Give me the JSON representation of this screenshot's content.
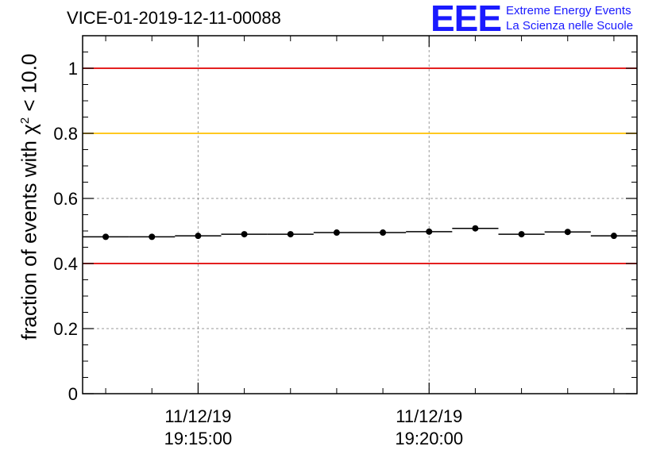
{
  "header": {
    "title": "VICE-01-2019-12-11-00088",
    "logo_mark": "EEE",
    "logo_line1": "Extreme Energy Events",
    "logo_line2": "La Scienza nelle Scuole"
  },
  "chart_data": {
    "type": "scatter",
    "title": "VICE-01-2019-12-11-00088",
    "xlabel": "",
    "ylabel_prefix": "fraction of events with χ",
    "ylabel_sup": "2",
    "ylabel_suffix": " < 10.0",
    "ylim": [
      0,
      1.1
    ],
    "xlim_minutes": [
      19.0,
      43.0
    ],
    "y_ticks": [
      {
        "value": 0,
        "label": "0"
      },
      {
        "value": 0.2,
        "label": "0.2"
      },
      {
        "value": 0.4,
        "label": "0.4"
      },
      {
        "value": 0.6,
        "label": "0.6"
      },
      {
        "value": 0.8,
        "label": "0.8"
      },
      {
        "value": 1,
        "label": "1"
      }
    ],
    "x_major_ticks": [
      {
        "value": 24,
        "date": "11/12/19",
        "time": "19:15:00"
      },
      {
        "value": 34,
        "date": "11/12/19",
        "time": "19:20:00"
      }
    ],
    "x_minor_ticks": [
      20,
      22,
      26,
      28,
      30,
      32,
      36,
      38,
      40,
      42
    ],
    "reference_lines": [
      {
        "y": 1.0,
        "color": "#e00000"
      },
      {
        "y": 0.8,
        "color": "#ffc000"
      },
      {
        "y": 0.4,
        "color": "#e00000"
      }
    ],
    "grid": true,
    "series": [
      {
        "name": "fraction",
        "x": [
          20,
          22,
          24,
          26,
          28,
          30,
          32,
          34,
          36,
          38,
          40,
          42
        ],
        "y": [
          0.482,
          0.482,
          0.485,
          0.49,
          0.49,
          0.495,
          0.495,
          0.498,
          0.508,
          0.49,
          0.497,
          0.485
        ],
        "bin_width": 2,
        "color": "#000000"
      }
    ]
  }
}
